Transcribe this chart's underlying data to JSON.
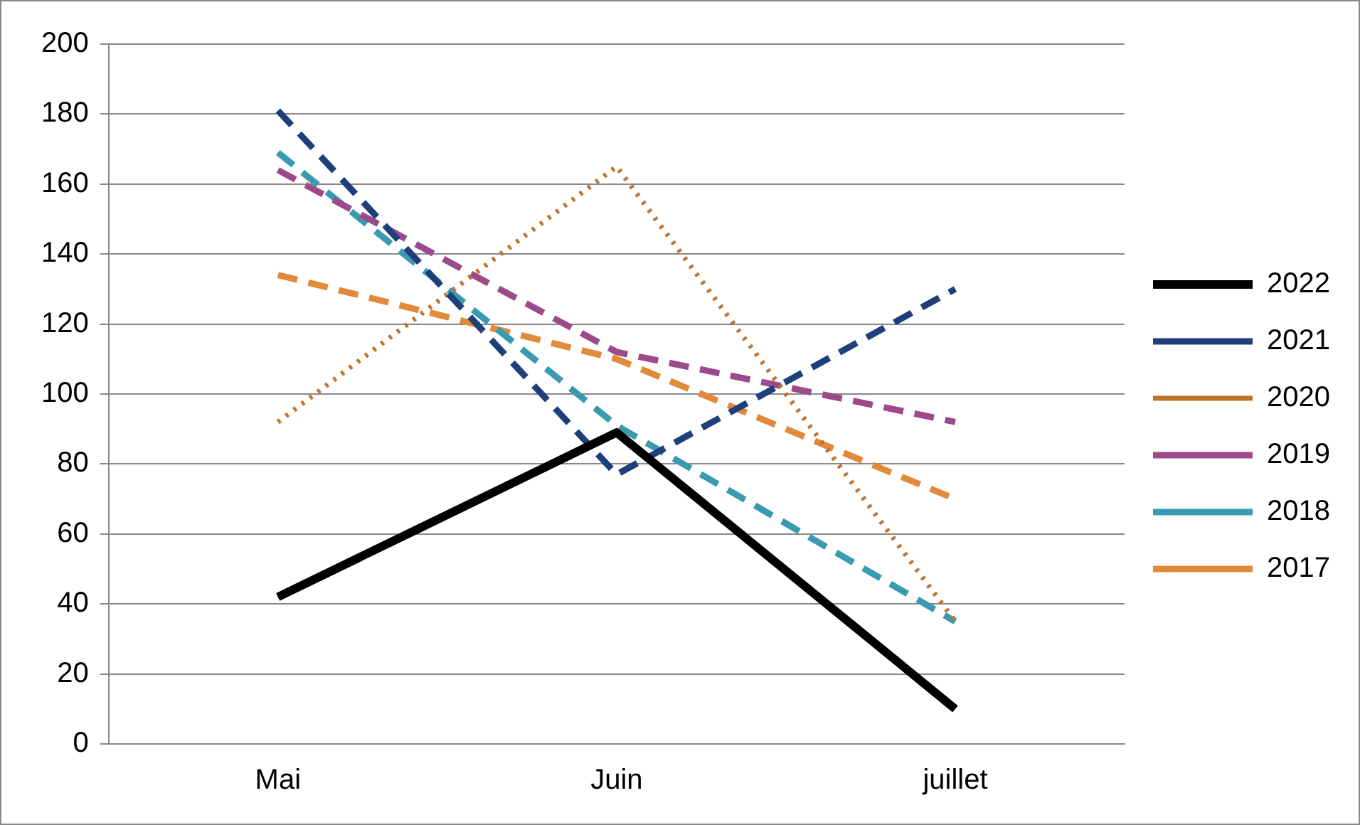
{
  "chart_data": {
    "type": "line",
    "categories": [
      "Mai",
      "Juin",
      "juillet"
    ],
    "series": [
      {
        "name": "2022",
        "color": "#000000",
        "line_style": "solid",
        "values": [
          42,
          89,
          10
        ]
      },
      {
        "name": "2021",
        "color": "#1f3f7a",
        "line_style": "dashed",
        "values": [
          181,
          77,
          130
        ]
      },
      {
        "name": "2020",
        "color": "#c0732a",
        "line_style": "dotted",
        "values": [
          92,
          165,
          35
        ]
      },
      {
        "name": "2019",
        "color": "#9c4a8c",
        "line_style": "dashed",
        "values": [
          164,
          112,
          92
        ]
      },
      {
        "name": "2018",
        "color": "#3a9bb0",
        "line_style": "dashed",
        "values": [
          169,
          91,
          35
        ]
      },
      {
        "name": "2017",
        "color": "#e08a3a",
        "line_style": "dashed",
        "values": [
          134,
          110,
          70
        ]
      }
    ],
    "ylim": [
      0,
      200
    ],
    "yticks": [
      0,
      20,
      40,
      60,
      80,
      100,
      120,
      140,
      160,
      180,
      200
    ],
    "grid": "y",
    "legend": "right",
    "marker": "none"
  }
}
